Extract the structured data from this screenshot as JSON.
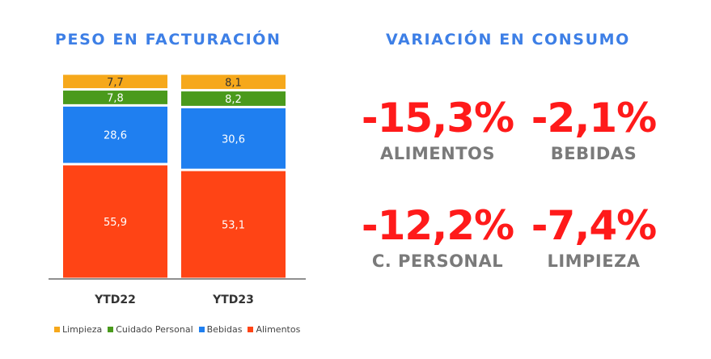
{
  "left_title": "PESO EN FACTURACIÓN",
  "right_title": "VARIACIÓN  EN CONSUMO",
  "chart_data": {
    "type": "bar",
    "stacked": true,
    "categories": [
      "YTD22",
      "YTD23"
    ],
    "series": [
      {
        "name": "Alimentos",
        "color": "#ff4415",
        "values": [
          55.9,
          53.1
        ]
      },
      {
        "name": "Bebidas",
        "color": "#1f7ff0",
        "values": [
          28.6,
          30.6
        ]
      },
      {
        "name": "Cuidado Personal",
        "color": "#4a9a1c",
        "values": [
          7.8,
          8.2
        ]
      },
      {
        "name": "Limpieza",
        "color": "#f6a81b",
        "values": [
          7.7,
          8.1
        ]
      }
    ],
    "data_labels": [
      [
        "55,9",
        "53,1"
      ],
      [
        "28,6",
        "30,6"
      ],
      [
        "7,8",
        "8,2"
      ],
      [
        "7,7",
        "8,1"
      ]
    ],
    "legend_position": "bottom",
    "legend": [
      {
        "name": "Limpieza",
        "color": "#f6a81b"
      },
      {
        "name": "Cuidado Personal",
        "color": "#4a9a1c"
      },
      {
        "name": "Bebidas",
        "color": "#1f7ff0"
      },
      {
        "name": "Alimentos",
        "color": "#ff4415"
      }
    ],
    "grid": false,
    "ylim": [
      0,
      100
    ]
  },
  "metrics": [
    {
      "value": "-15,3%",
      "label": "ALIMENTOS"
    },
    {
      "value": "-2,1%",
      "label": "BEBIDAS"
    },
    {
      "value": "-12,2%",
      "label": "C. PERSONAL"
    },
    {
      "value": "-7,4%",
      "label": "LIMPIEZA"
    }
  ]
}
